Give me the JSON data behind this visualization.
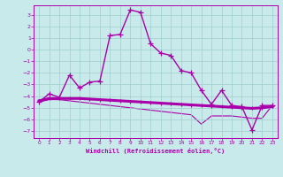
{
  "background_color": "#c8eaea",
  "grid_color": "#a0cccc",
  "line_color": "#aa00aa",
  "xlabel": "Windchill (Refroidissement éolien,°C)",
  "x_ticks": [
    0,
    1,
    2,
    3,
    4,
    5,
    6,
    7,
    8,
    9,
    10,
    11,
    12,
    13,
    14,
    15,
    16,
    17,
    18,
    19,
    20,
    21,
    22,
    23
  ],
  "y_ticks": [
    3,
    2,
    1,
    0,
    -1,
    -2,
    -3,
    -4,
    -5,
    -6,
    -7
  ],
  "ylim": [
    -7.6,
    3.8
  ],
  "xlim": [
    -0.5,
    23.5
  ],
  "curve1_y": [
    -4.5,
    -3.8,
    -4.1,
    -2.2,
    -3.3,
    -2.8,
    -2.7,
    1.2,
    1.3,
    3.4,
    3.2,
    0.5,
    -0.3,
    -0.5,
    -1.8,
    -2.0,
    -3.5,
    -4.7,
    -3.5,
    -4.8,
    -4.9,
    -6.9,
    -4.8,
    -4.8
  ],
  "curve2_y": [
    -4.4,
    -4.2,
    -4.2,
    -4.2,
    -4.2,
    -4.25,
    -4.3,
    -4.35,
    -4.4,
    -4.45,
    -4.5,
    -4.55,
    -4.6,
    -4.65,
    -4.7,
    -4.75,
    -4.8,
    -4.85,
    -4.9,
    -4.95,
    -5.0,
    -5.05,
    -5.0,
    -4.9
  ],
  "curve3_y": [
    -4.5,
    -4.3,
    -4.3,
    -4.4,
    -4.5,
    -4.6,
    -4.7,
    -4.8,
    -4.9,
    -5.0,
    -5.1,
    -5.2,
    -5.3,
    -5.4,
    -5.5,
    -5.6,
    -6.4,
    -5.7,
    -5.7,
    -5.7,
    -5.8,
    -5.9,
    -5.9,
    -4.8
  ]
}
